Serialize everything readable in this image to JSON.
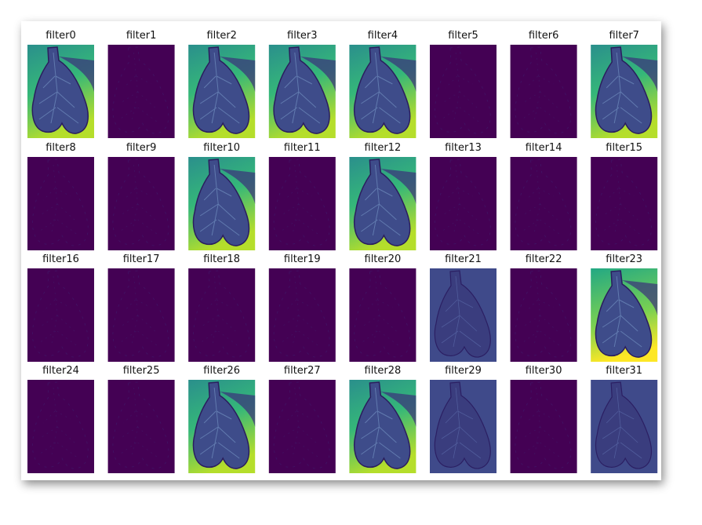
{
  "filters": [
    {
      "label": "filter0"
    },
    {
      "label": "filter1"
    },
    {
      "label": "filter2"
    },
    {
      "label": "filter3"
    },
    {
      "label": "filter4"
    },
    {
      "label": "filter5"
    },
    {
      "label": "filter6"
    },
    {
      "label": "filter7"
    },
    {
      "label": "filter8"
    },
    {
      "label": "filter9"
    },
    {
      "label": "filter10"
    },
    {
      "label": "filter11"
    },
    {
      "label": "filter12"
    },
    {
      "label": "filter13"
    },
    {
      "label": "filter14"
    },
    {
      "label": "filter15"
    },
    {
      "label": "filter16"
    },
    {
      "label": "filter17"
    },
    {
      "label": "filter18"
    },
    {
      "label": "filter19"
    },
    {
      "label": "filter20"
    },
    {
      "label": "filter21"
    },
    {
      "label": "filter22"
    },
    {
      "label": "filter23"
    },
    {
      "label": "filter24"
    },
    {
      "label": "filter25"
    },
    {
      "label": "filter26"
    },
    {
      "label": "filter27"
    },
    {
      "label": "filter28"
    },
    {
      "label": "filter29"
    },
    {
      "label": "filter30"
    },
    {
      "label": "filter31"
    }
  ]
}
